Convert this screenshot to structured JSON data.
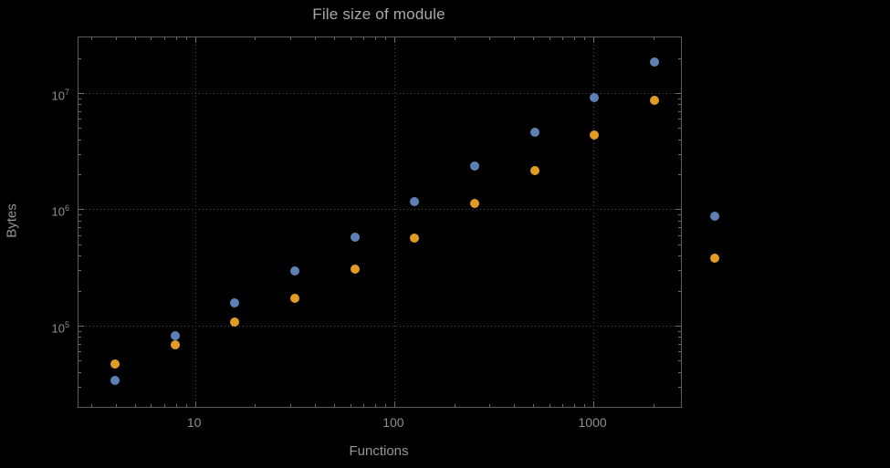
{
  "figure": {
    "title": "File size of module",
    "x_axis_label": "Functions",
    "y_axis_label": "Bytes"
  },
  "colors": {
    "background": "#000000",
    "frame": "#5d5d5d",
    "gridline": "#4e4e4e",
    "tick_mark": "#6b6b6b",
    "tick_label_text": "#8f8f8f",
    "axis_label_text": "#969696",
    "title_text": "#a9a9a9",
    "series_blue": "#5e81b5",
    "series_orange": "#e19c24"
  },
  "chart_data": {
    "type": "scatter",
    "title": "File size of module",
    "xlabel": "Functions",
    "ylabel": "Bytes",
    "x_scale": "log",
    "y_scale": "log",
    "xlim": [
      2.6,
      2750
    ],
    "ylim": [
      20000,
      30000000
    ],
    "grid": "dotted",
    "legend": "none",
    "x_gridlines": [
      10,
      100,
      1000
    ],
    "y_gridlines": [
      100000,
      1000000,
      10000000
    ],
    "x_ticks": [
      {
        "value": 10,
        "label": "10"
      },
      {
        "value": 100,
        "label": "100"
      },
      {
        "value": 1000,
        "label": "1000"
      }
    ],
    "y_ticks": [
      {
        "value": 100000,
        "base": "10",
        "exp": "5"
      },
      {
        "value": 1000000,
        "base": "10",
        "exp": "6"
      },
      {
        "value": 10000000,
        "base": "10",
        "exp": "7"
      }
    ],
    "x": [
      4,
      8,
      16,
      32,
      64,
      128,
      256,
      512,
      1024,
      2048,
      4096
    ],
    "series": [
      {
        "name": "blue",
        "color": "#5e81b5",
        "values": [
          33000,
          80000,
          155000,
          290000,
          570000,
          1150000,
          2300000,
          4500000,
          9000000,
          18000000,
          850000
        ]
      },
      {
        "name": "orange",
        "color": "#e19c24",
        "values": [
          46000,
          67000,
          105000,
          170000,
          300000,
          560000,
          1100000,
          2100000,
          4300000,
          8500000,
          370000
        ]
      }
    ]
  }
}
